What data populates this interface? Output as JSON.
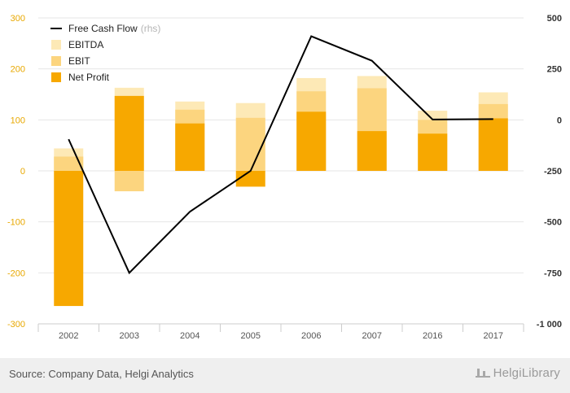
{
  "chart_data": {
    "type": "bar",
    "categories": [
      "2002",
      "2003",
      "2004",
      "2005",
      "2006",
      "2007",
      "2016",
      "2017"
    ],
    "series": [
      {
        "name": "EBITDA",
        "values": [
          44,
          163,
          136,
          133,
          182,
          186,
          118,
          154
        ],
        "color": "#fde9b6"
      },
      {
        "name": "EBIT",
        "values": [
          28,
          -40,
          120,
          104,
          156,
          162,
          100,
          131
        ],
        "color": "#fcd57f"
      },
      {
        "name": "Net Profit",
        "values": [
          -265,
          147,
          93,
          -31,
          116,
          78,
          73,
          103
        ],
        "color": "#f7a800"
      },
      {
        "name": "Free Cash Flow",
        "label_suffix": "(rhs)",
        "axis": "right",
        "type": "line",
        "values": [
          -95,
          -750,
          -450,
          -250,
          410,
          290,
          2,
          4
        ],
        "color": "#000000"
      }
    ],
    "left_axis": {
      "min": -300,
      "max": 300,
      "ticks": [
        "300",
        "200",
        "100",
        "0",
        "-100",
        "-200",
        "-300"
      ]
    },
    "right_axis": {
      "min": -1000,
      "max": 500,
      "ticks": [
        "500",
        "250",
        "0",
        "-250",
        "-500",
        "-750",
        "-1 000"
      ]
    },
    "left_tick_color": "#e8a800",
    "grid": true,
    "legend_position": "top-left"
  },
  "footer": {
    "source": "Source: Company Data, Helgi Analytics",
    "brand": "HelgiLibrary"
  }
}
